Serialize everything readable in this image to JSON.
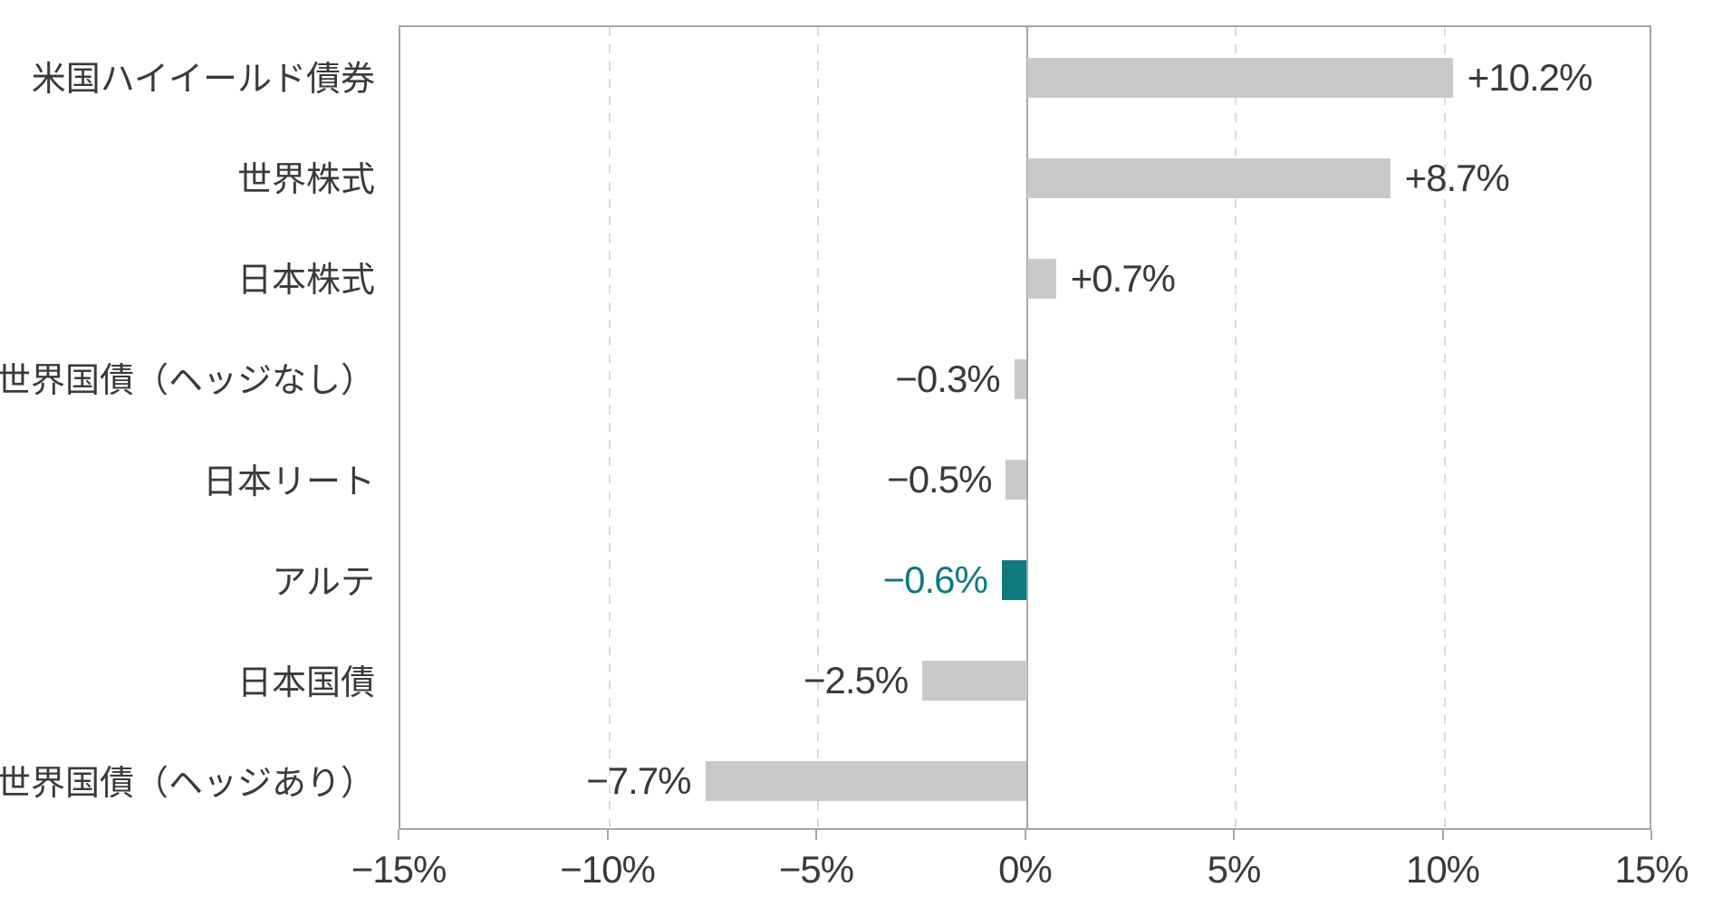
{
  "chart_data": {
    "type": "bar",
    "orientation": "horizontal",
    "title": "",
    "categories": [
      "米国ハイイールド債券",
      "世界株式",
      "日本株式",
      "世界国債（ヘッジなし）",
      "日本リート",
      "アルテ",
      "日本国債",
      "世界国債（ヘッジあり）"
    ],
    "values": [
      10.2,
      8.7,
      0.7,
      -0.3,
      -0.5,
      -0.6,
      -2.5,
      -7.7
    ],
    "value_labels": [
      "+10.2%",
      "+8.7%",
      "+0.7%",
      "−0.3%",
      "−0.5%",
      "−0.6%",
      "−2.5%",
      "−7.7%"
    ],
    "highlight_index": 5,
    "xlim": [
      -15,
      15
    ],
    "x_ticks": [
      -15,
      -10,
      -5,
      0,
      5,
      10,
      15
    ],
    "x_tick_labels": [
      "−15%",
      "−10%",
      "−5%",
      "0%",
      "5%",
      "10%",
      "15%"
    ],
    "grid": "vertical-dashed-at-5pct",
    "legend": "none",
    "colors": {
      "bar": "#C9C9C9",
      "highlight_bar": "#0E7A7F",
      "highlight_text": "#0E7A7F",
      "axis_line": "#A6A6A6",
      "gridline": "#DBDBDB",
      "text": "#3A3A3A",
      "background": "#FFFFFF"
    }
  }
}
